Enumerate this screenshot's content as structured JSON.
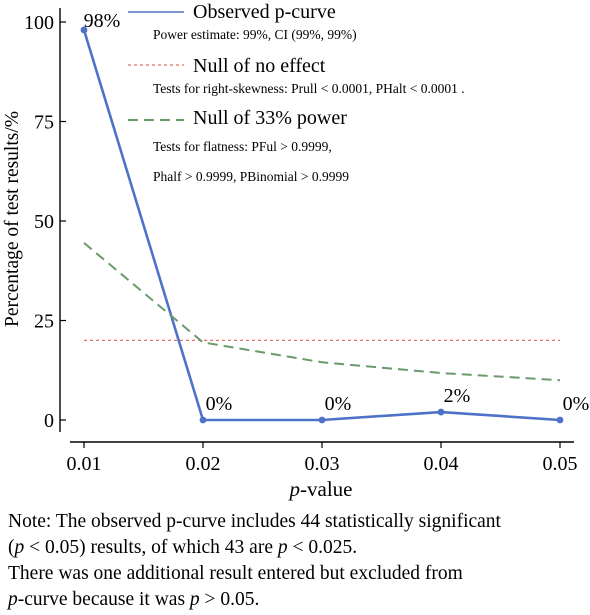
{
  "chart_data": {
    "type": "line",
    "x": [
      0.01,
      0.02,
      0.03,
      0.04,
      0.05
    ],
    "x_ticks": [
      "0.01",
      "0.02",
      "0.03",
      "0.04",
      "0.05"
    ],
    "y_ticks": [
      "0",
      "25",
      "50",
      "75",
      "100"
    ],
    "xlabel_italic": "p",
    "xlabel_rest": "-value",
    "ylabel": "Percentage of test results/%",
    "xlim": [
      0.01,
      0.05
    ],
    "ylim": [
      0,
      100
    ],
    "series": [
      {
        "name": "Observed p-curve",
        "values": [
          98,
          0,
          0,
          2,
          0
        ],
        "labels": [
          "98%",
          "0%",
          "0%",
          "2%",
          "0%"
        ],
        "color": "#4f72c9",
        "style": "solid"
      },
      {
        "name": "Null of no effect",
        "values": [
          20,
          20,
          20,
          20,
          20
        ],
        "color": "#e0726b",
        "style": "dotted"
      },
      {
        "name": "Null of 33% power",
        "values": [
          44.5,
          19.5,
          14.5,
          11.8,
          10.0
        ],
        "color": "#6b9a6b",
        "style": "dashed"
      }
    ],
    "legend": [
      {
        "title": "Observed p-curve",
        "desc": [
          "Power estimate: 99%, CI (99%, 99%)"
        ]
      },
      {
        "title": "Null of no effect",
        "desc": [
          "Tests for right-skewness: Prull < 0.0001, PHalt < 0.0001 ."
        ]
      },
      {
        "title": "Null of 33% power",
        "desc": [
          "Tests for flatness: PFul > 0.9999,",
          "Phalf > 0.9999, PBinomial > 0.9999"
        ]
      }
    ],
    "legend_position": "top-right"
  },
  "note": {
    "line1": "Note: The observed p-curve includes 44 statistically significant",
    "line2_open": "(",
    "line2_p1": "p",
    "line2_mid": " < 0.05) results, of which 43 are ",
    "line2_p2": "p",
    "line2_end": " < 0.025.",
    "line3": "There was one additional result entered but excluded from",
    "line4_p1": "p",
    "line4_mid": "-curve because it was ",
    "line4_p2": "p",
    "line4_end": " > 0.05."
  }
}
